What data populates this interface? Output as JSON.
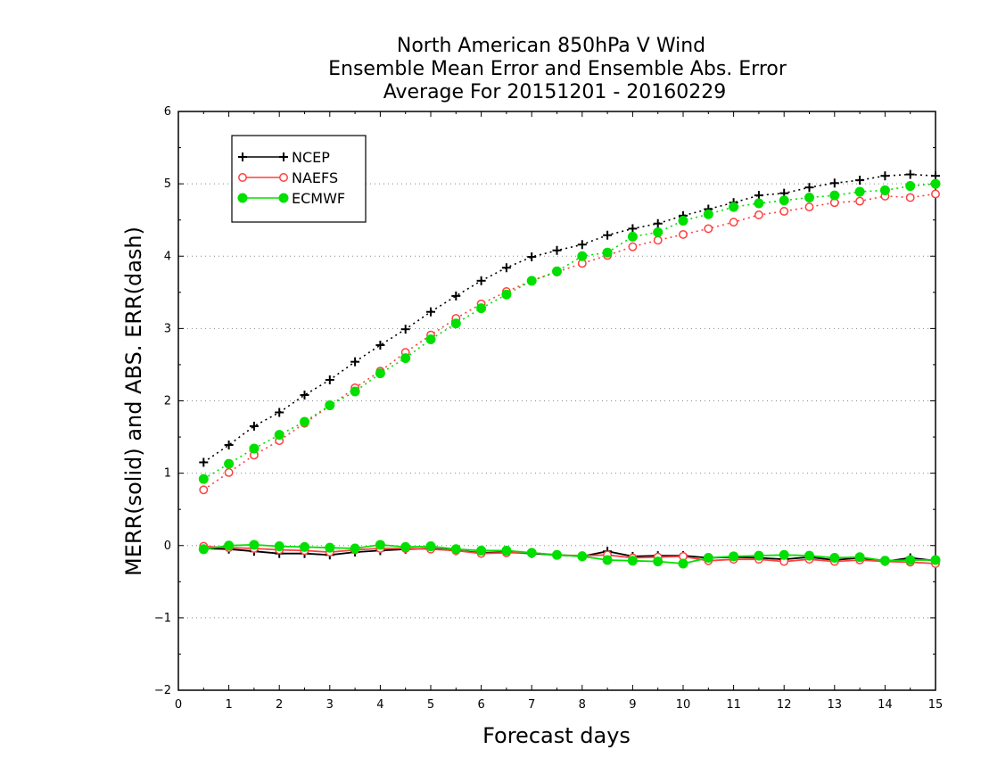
{
  "chart_data": {
    "type": "line",
    "title_lines": [
      "North American 850hPa V Wind",
      "Ensemble Mean Error and Ensemble Abs. Error",
      "Average For 20151201 - 20160229"
    ],
    "xlabel": "Forecast days",
    "ylabel": "MERR(solid) and ABS. ERR(dash)",
    "xlim": [
      0,
      15
    ],
    "ylim": [
      -2,
      6
    ],
    "x_ticks": [
      "0",
      "1",
      "2",
      "3",
      "4",
      "5",
      "6",
      "7",
      "8",
      "9",
      "10",
      "11",
      "12",
      "13",
      "14",
      "15"
    ],
    "y_ticks": [
      "6",
      "5",
      "4",
      "3",
      "2",
      "1",
      "0",
      "-1",
      "-2"
    ],
    "grid": "horizontal dotted",
    "legend_position": "top-left",
    "x": [
      0.5,
      1,
      1.5,
      2,
      2.5,
      3,
      3.5,
      4,
      4.5,
      5,
      5.5,
      6,
      6.5,
      7,
      7.5,
      8,
      8.5,
      9,
      9.5,
      10,
      10.5,
      11,
      11.5,
      12,
      12.5,
      13,
      13.5,
      14,
      14.5,
      15
    ],
    "series": [
      {
        "name": "NCEP",
        "color": "#000000",
        "marker": "plus",
        "abs_err": [
          1.15,
          1.39,
          1.65,
          1.84,
          2.08,
          2.29,
          2.54,
          2.77,
          2.99,
          3.23,
          3.45,
          3.66,
          3.84,
          3.99,
          4.08,
          4.16,
          4.29,
          4.38,
          4.45,
          4.56,
          4.65,
          4.74,
          4.84,
          4.87,
          4.95,
          5.01,
          5.05,
          5.11,
          5.13,
          5.11
        ],
        "mean_err": [
          -0.04,
          -0.05,
          -0.08,
          -0.11,
          -0.11,
          -0.13,
          -0.09,
          -0.07,
          -0.05,
          -0.04,
          -0.07,
          -0.1,
          -0.09,
          -0.11,
          -0.13,
          -0.15,
          -0.08,
          -0.15,
          -0.14,
          -0.14,
          -0.17,
          -0.16,
          -0.17,
          -0.19,
          -0.16,
          -0.2,
          -0.17,
          -0.22,
          -0.17,
          -0.21
        ]
      },
      {
        "name": "NAEFS",
        "color": "#ff4040",
        "marker": "circle",
        "abs_err": [
          0.77,
          1.01,
          1.25,
          1.45,
          1.69,
          1.93,
          2.18,
          2.41,
          2.67,
          2.91,
          3.14,
          3.34,
          3.51,
          3.66,
          3.78,
          3.9,
          4.01,
          4.13,
          4.22,
          4.3,
          4.38,
          4.47,
          4.57,
          4.62,
          4.68,
          4.74,
          4.76,
          4.83,
          4.81,
          4.86
        ],
        "mean_err": [
          -0.01,
          -0.03,
          -0.04,
          -0.06,
          -0.07,
          -0.09,
          -0.06,
          -0.04,
          -0.04,
          -0.05,
          -0.07,
          -0.11,
          -0.1,
          -0.1,
          -0.13,
          -0.14,
          -0.13,
          -0.17,
          -0.16,
          -0.15,
          -0.21,
          -0.19,
          -0.19,
          -0.22,
          -0.19,
          -0.22,
          -0.2,
          -0.22,
          -0.23,
          -0.25
        ]
      },
      {
        "name": "ECMWF",
        "color": "#00e000",
        "marker": "dot",
        "abs_err": [
          0.92,
          1.13,
          1.34,
          1.53,
          1.71,
          1.94,
          2.13,
          2.38,
          2.59,
          2.85,
          3.07,
          3.28,
          3.47,
          3.66,
          3.79,
          4.0,
          4.05,
          4.27,
          4.33,
          4.49,
          4.58,
          4.68,
          4.73,
          4.77,
          4.81,
          4.84,
          4.89,
          4.91,
          4.97,
          5.0
        ],
        "mean_err": [
          -0.05,
          0.0,
          0.01,
          -0.01,
          -0.02,
          -0.03,
          -0.04,
          0.01,
          -0.02,
          -0.01,
          -0.05,
          -0.07,
          -0.07,
          -0.1,
          -0.13,
          -0.15,
          -0.2,
          -0.21,
          -0.22,
          -0.25,
          -0.17,
          -0.15,
          -0.14,
          -0.13,
          -0.14,
          -0.17,
          -0.16,
          -0.21,
          -0.2,
          -0.2
        ]
      }
    ]
  }
}
